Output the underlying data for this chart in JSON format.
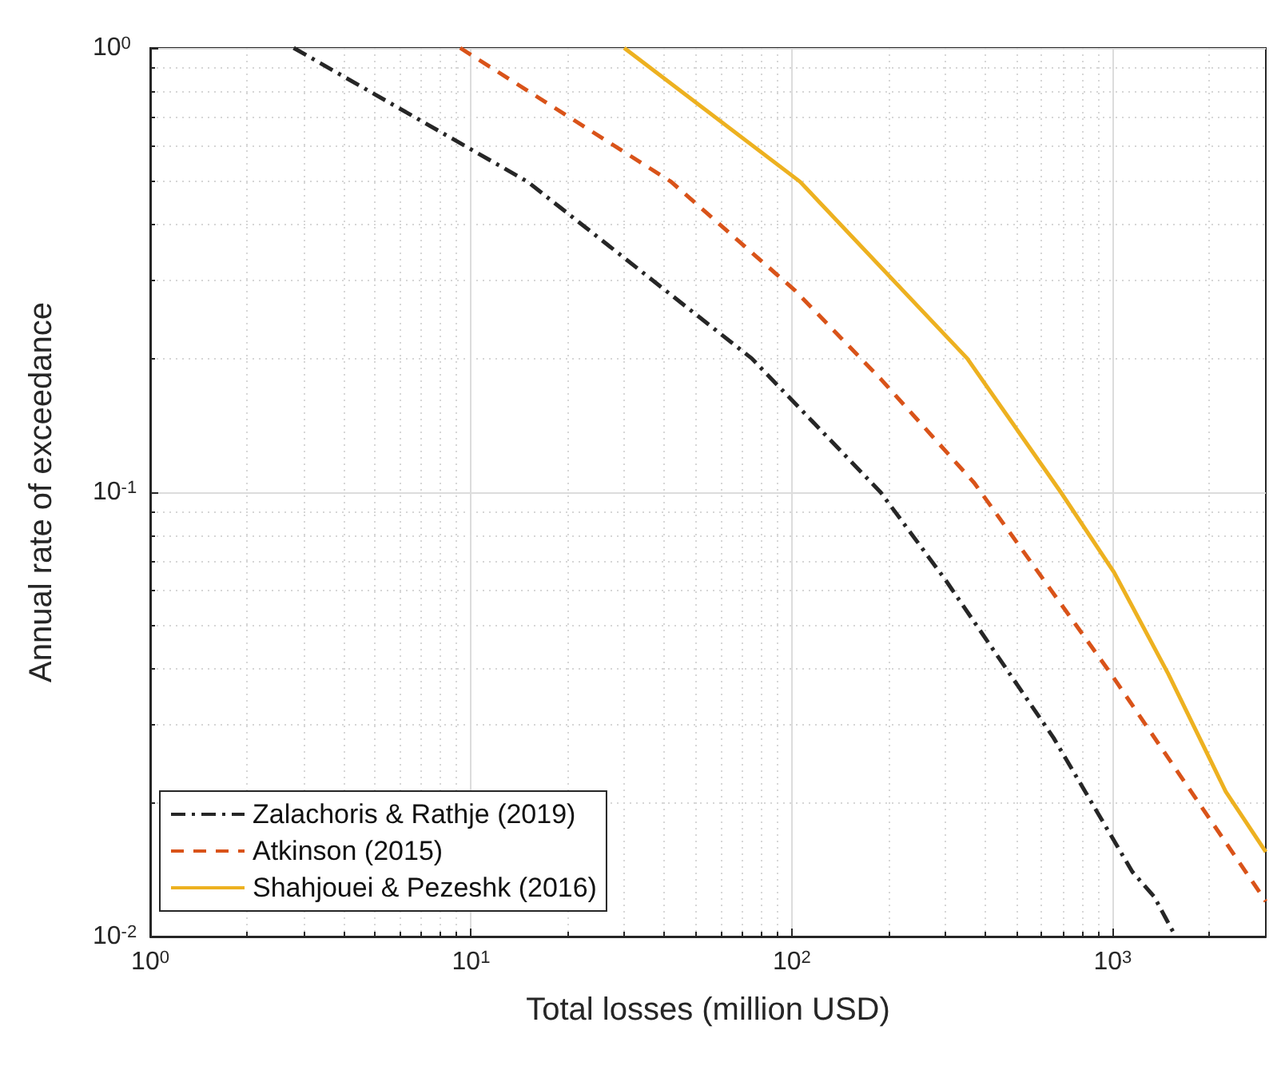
{
  "chart_data": {
    "type": "line",
    "xlabel": "Total losses (million USD)",
    "ylabel": "Annual rate of exceedance",
    "log": "xy",
    "grid": true,
    "legend": "bottom left",
    "marker": "none",
    "xlim": [
      1,
      3000
    ],
    "xticks": [
      {
        "value": 1,
        "label": "10$^{0}$"
      },
      {
        "value": 10,
        "label": "10$^{1}$"
      },
      {
        "value": 100,
        "label": "10$^{2}$"
      },
      {
        "value": 1000,
        "label": "10$^{3}$"
      }
    ],
    "ylim": [
      0.01,
      1
    ],
    "yticks": [
      {
        "value": 0.01,
        "label": "10$^{-2}$"
      },
      {
        "value": 0.1,
        "label": "10$^{-1}$"
      },
      {
        "value": 1,
        "label": "10$^{0}$"
      }
    ],
    "series": [
      {
        "name": "Zalachoris & Rathje (2019)",
        "color": "#262626",
        "line_style": "dashdot",
        "x": [
          2.8,
          15,
          75,
          189,
          301,
          654,
          1150,
          1346,
          1570
        ],
        "values": [
          1,
          0.5,
          0.2,
          0.1,
          0.0635,
          0.028,
          0.014,
          0.0123,
          0.01
        ]
      },
      {
        "name": "Atkinson (2015)",
        "color": "#d95319",
        "line_style": "dashed",
        "x": [
          9.25,
          42,
          102,
          189,
          370,
          988,
          3000
        ],
        "values": [
          1,
          0.5,
          0.285,
          0.18,
          0.105,
          0.039,
          0.012
        ]
      },
      {
        "name": "Shahjouei & Pezeshk (2016)",
        "color": "#edb120",
        "line_style": "solid",
        "x": [
          30,
          106,
          352,
          689,
          1010,
          1490,
          2250,
          3000
        ],
        "values": [
          1,
          0.5,
          0.2,
          0.1,
          0.066,
          0.039,
          0.0212,
          0.0155
        ]
      }
    ]
  }
}
